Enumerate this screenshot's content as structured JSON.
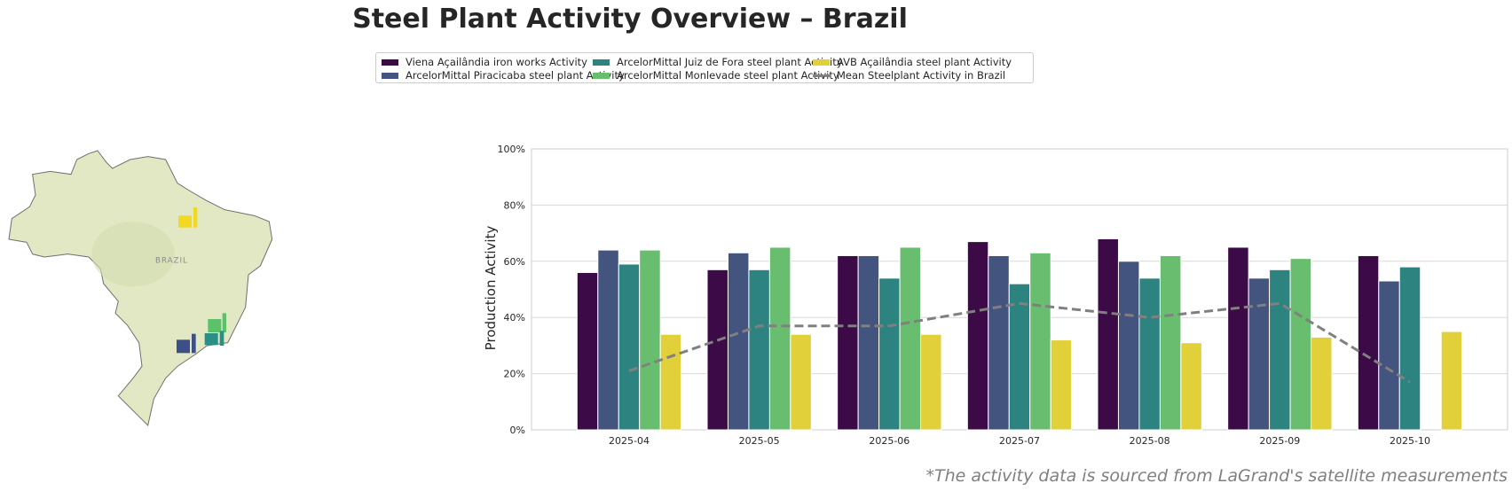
{
  "title": "Steel Plant Activity Overview – Brazil",
  "footnote": "*The activity data is sourced from LaGrand's satellite measurements",
  "map": {
    "label": "BRAZIL",
    "icon": "factory-icon"
  },
  "chart_data": {
    "type": "bar",
    "title": "",
    "xlabel": "",
    "ylabel": "Production Activity",
    "ylim": [
      0,
      100
    ],
    "yticks": [
      "0%",
      "20%",
      "40%",
      "60%",
      "80%",
      "100%"
    ],
    "grid": true,
    "legend_position": "top-center",
    "categories": [
      "2025-04",
      "2025-05",
      "2025-06",
      "2025-07",
      "2025-08",
      "2025-09",
      "2025-10"
    ],
    "series": [
      {
        "name": "Viena Açailândia iron works Activity",
        "color": "#3b0a47",
        "values": [
          56,
          57,
          62,
          67,
          68,
          65,
          62
        ]
      },
      {
        "name": "ArcelorMittal Piracicaba steel plant Activity",
        "color": "#43547f",
        "values": [
          64,
          63,
          62,
          62,
          60,
          54,
          53
        ]
      },
      {
        "name": "ArcelorMittal Juiz de Fora steel plant Activity",
        "color": "#2c837f",
        "values": [
          59,
          57,
          54,
          52,
          54,
          57,
          58
        ]
      },
      {
        "name": "ArcelorMittal Monlevade steel plant Activity",
        "color": "#68bd6e",
        "values": [
          64,
          65,
          65,
          63,
          62,
          61,
          null
        ]
      },
      {
        "name": "AVB Açailândia steel plant Activity",
        "color": "#e1d03a",
        "values": [
          34,
          34,
          34,
          32,
          31,
          33,
          35
        ]
      }
    ],
    "line": {
      "name": "Mean Steelplant Activity in Brazil",
      "color": "#808080",
      "style": "dashed",
      "values": [
        21,
        37,
        37,
        45,
        40,
        45,
        17
      ]
    }
  }
}
